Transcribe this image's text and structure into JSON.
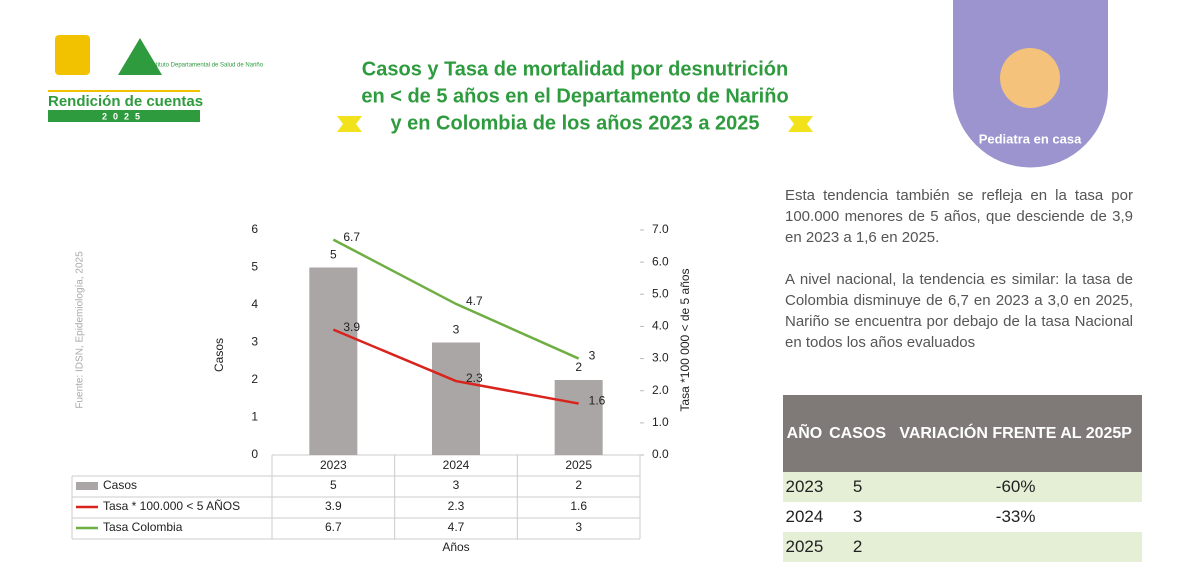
{
  "header": {
    "brand": "Rendición de cuentas",
    "year": "2025",
    "institute": "Instituto Departamental de Salud de Nariño",
    "badge": "Pediatra en casa"
  },
  "title_lines": [
    "Casos y Tasa de mortalidad por desnutrición",
    "en < de 5 años en el Departamento de Nariño",
    "y en Colombia de los años 2023 a 2025"
  ],
  "source": "Fuente: IDSN, Epidemiología, 2025",
  "chart_data": {
    "type": "combo",
    "categories": [
      "2023",
      "2024",
      "2025"
    ],
    "series": [
      {
        "name": "Casos",
        "type": "bar",
        "color": "#aaa6a5",
        "values": [
          5,
          3,
          2
        ]
      },
      {
        "name": "Tasa * 100.000 < 5 AÑOS",
        "type": "line",
        "axis": "y2",
        "color": "#d9231d",
        "values": [
          3.9,
          2.3,
          1.6
        ]
      },
      {
        "name": "Tasa Colombia",
        "type": "line",
        "axis": "y2",
        "color": "#6fae43",
        "values": [
          6.7,
          4.7,
          3
        ]
      }
    ],
    "ylim": [
      0,
      6
    ],
    "yticks": [
      0,
      1,
      2,
      3,
      4,
      5,
      6
    ],
    "y2lim": [
      0,
      7
    ],
    "y2ticks": [
      {
        "value": 0,
        "label": "0.0"
      },
      {
        "value": 1,
        "label": "1.0"
      },
      {
        "value": 2,
        "label": "2.0"
      },
      {
        "value": 3,
        "label": "3.0"
      },
      {
        "value": 4,
        "label": "4.0"
      },
      {
        "value": 5,
        "label": "5.0"
      },
      {
        "value": 6,
        "label": "6.0"
      },
      {
        "value": 7,
        "label": "7.0"
      }
    ],
    "x_label": "Años",
    "y_label": "Casos",
    "y2_label": "Tasa *100 000 < de 5 años"
  },
  "paragraphs": [
    "Esta tendencia también se refleja en la tasa por 100.000 menores de 5 años, que desciende de 3,9 en 2023 a 1,6 en 2025.",
    "A nivel nacional, la tendencia es similar: la tasa de Colombia disminuye de 6,7 en 2023 a 3,0 en 2025, Nariño se encuentra por debajo de la tasa Nacional en  todos los años evaluados"
  ],
  "table": {
    "header": [
      "AÑO",
      "CASOS",
      "VARIACIÓN FRENTE AL 2025P"
    ],
    "rows": [
      [
        "2023",
        "5",
        "-60%"
      ],
      [
        "2024",
        "3",
        "-33%"
      ],
      [
        "2025",
        "2"
      ]
    ]
  }
}
